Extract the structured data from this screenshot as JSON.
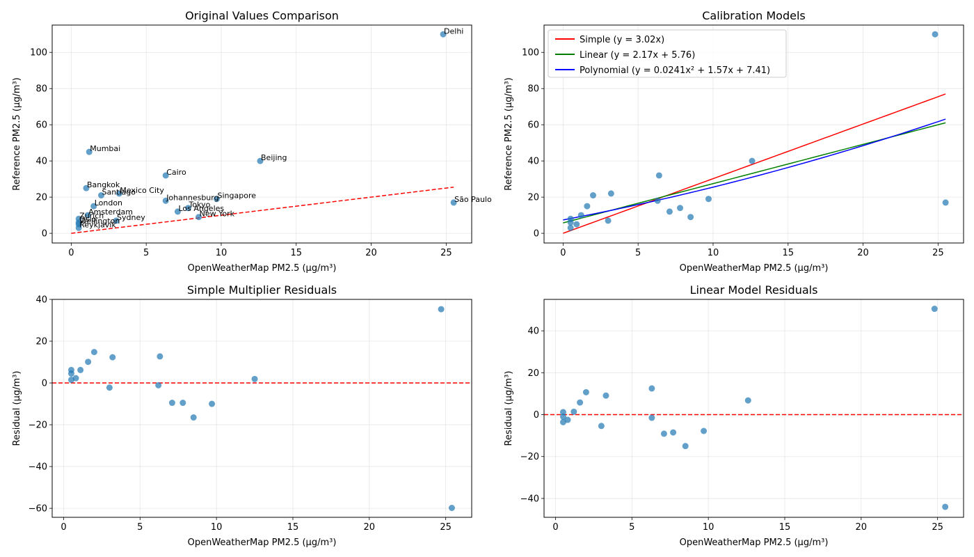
{
  "chart_data": [
    {
      "type": "scatter",
      "title": "Original Values Comparison",
      "xlabel": "OpenWeatherMap PM2.5 (µg/m³)",
      "ylabel": "Reference PM2.5 (µg/m³)",
      "xlim": [
        -1.27,
        26.7
      ],
      "ylim": [
        -5.35,
        115.1
      ],
      "xticks": [
        "0",
        "5",
        "10",
        "15",
        "20",
        "25"
      ],
      "yticks": [
        "0",
        "20",
        "40",
        "60",
        "80",
        "100"
      ],
      "grid": true,
      "points": [
        {
          "label": "Delhi",
          "x": 24.8,
          "y": 110
        },
        {
          "label": "Mumbai",
          "x": 1.2,
          "y": 45
        },
        {
          "label": "Beijing",
          "x": 12.6,
          "y": 40
        },
        {
          "label": "Cairo",
          "x": 6.3,
          "y": 32
        },
        {
          "label": "Bangkok",
          "x": 1.0,
          "y": 25
        },
        {
          "label": "Mexico City",
          "x": 3.2,
          "y": 22
        },
        {
          "label": "Santiago",
          "x": 2.0,
          "y": 21
        },
        {
          "label": "Singapore",
          "x": 9.7,
          "y": 19
        },
        {
          "label": "Johannesburg",
          "x": 6.3,
          "y": 18
        },
        {
          "label": "São Paulo",
          "x": 25.5,
          "y": 17
        },
        {
          "label": "London",
          "x": 1.5,
          "y": 15
        },
        {
          "label": "Tokyo",
          "x": 7.8,
          "y": 14
        },
        {
          "label": "Los Angeles",
          "x": 7.1,
          "y": 12
        },
        {
          "label": "Amsterdam",
          "x": 1.1,
          "y": 10
        },
        {
          "label": "New York",
          "x": 8.5,
          "y": 9
        },
        {
          "label": "Zurich",
          "x": 0.5,
          "y": 8
        },
        {
          "label": "Sydney",
          "x": 3.0,
          "y": 7
        },
        {
          "label": "Oslo",
          "x": 0.5,
          "y": 6
        },
        {
          "label": "Wellington",
          "x": 0.5,
          "y": 5
        },
        {
          "label": "Reykjavik",
          "x": 0.5,
          "y": 3
        }
      ],
      "reference_line": {
        "x": [
          0,
          25.5
        ],
        "y": [
          0,
          25.5
        ],
        "style": "dashed",
        "color": "#ff0000"
      }
    },
    {
      "type": "scatter",
      "title": "Calibration Models",
      "xlabel": "OpenWeatherMap PM2.5 (µg/m³)",
      "ylabel": "Reference PM2.5 (µg/m³)",
      "xlim": [
        -1.27,
        26.7
      ],
      "ylim": [
        -5.35,
        115.1
      ],
      "xticks": [
        "0",
        "5",
        "10",
        "15",
        "20",
        "25"
      ],
      "yticks": [
        "0",
        "20",
        "40",
        "60",
        "80",
        "100"
      ],
      "grid": true,
      "legend_position": "top-left",
      "points": [
        {
          "x": 24.8,
          "y": 110
        },
        {
          "x": 1.2,
          "y": 10
        },
        {
          "x": 12.6,
          "y": 40
        },
        {
          "x": 6.4,
          "y": 32
        },
        {
          "x": 1.6,
          "y": 15
        },
        {
          "x": 3.2,
          "y": 22
        },
        {
          "x": 2.0,
          "y": 21
        },
        {
          "x": 9.7,
          "y": 19
        },
        {
          "x": 6.3,
          "y": 18
        },
        {
          "x": 25.5,
          "y": 17
        },
        {
          "x": 7.8,
          "y": 14
        },
        {
          "x": 7.1,
          "y": 12
        },
        {
          "x": 0.9,
          "y": 5
        },
        {
          "x": 8.5,
          "y": 9
        },
        {
          "x": 0.5,
          "y": 8
        },
        {
          "x": 3.0,
          "y": 7
        },
        {
          "x": 0.5,
          "y": 6
        },
        {
          "x": 0.5,
          "y": 3
        }
      ],
      "series": [
        {
          "name": "Simple (y = 3.02x)",
          "color": "#ff0000",
          "model": "simple",
          "coef": [
            3.02
          ]
        },
        {
          "name": "Linear (y = 2.17x + 5.76)",
          "color": "#008000",
          "model": "linear",
          "coef": [
            2.17,
            5.76
          ]
        },
        {
          "name": "Polynomial (y = 0.0241x² + 1.57x + 7.41)",
          "color": "#0000ff",
          "model": "poly",
          "coef": [
            0.0241,
            1.57,
            7.41
          ]
        }
      ],
      "x_range": [
        0,
        25.5
      ]
    },
    {
      "type": "scatter",
      "title": "Simple Multiplier Residuals",
      "xlabel": "OpenWeatherMap PM2.5 (µg/m³)",
      "ylabel": "Residual (µg/m³)",
      "xlim": [
        -0.75,
        26.7
      ],
      "ylim": [
        -64.3,
        40.0
      ],
      "xticks": [
        "0",
        "5",
        "10",
        "15",
        "20",
        "25"
      ],
      "yticks": [
        "−60",
        "−40",
        "−20",
        "0",
        "20",
        "40"
      ],
      "grid": true,
      "points": [
        {
          "x": 24.7,
          "y": 35.3
        },
        {
          "x": 0.5,
          "y": 6.2
        },
        {
          "x": 0.5,
          "y": 4.5
        },
        {
          "x": 0.5,
          "y": 1.5
        },
        {
          "x": 0.8,
          "y": 2.3
        },
        {
          "x": 1.1,
          "y": 6.2
        },
        {
          "x": 1.6,
          "y": 10.1
        },
        {
          "x": 2.0,
          "y": 14.8
        },
        {
          "x": 3.2,
          "y": 12.3
        },
        {
          "x": 3.0,
          "y": -2.2
        },
        {
          "x": 6.3,
          "y": 12.7
        },
        {
          "x": 6.2,
          "y": -1.1
        },
        {
          "x": 7.1,
          "y": -9.5
        },
        {
          "x": 7.8,
          "y": -9.5
        },
        {
          "x": 8.5,
          "y": -16.5
        },
        {
          "x": 9.7,
          "y": -10.0
        },
        {
          "x": 12.5,
          "y": 1.9
        },
        {
          "x": 25.4,
          "y": -59.8
        }
      ],
      "reference_line": {
        "y": 0,
        "style": "dashed",
        "color": "#ff0000"
      }
    },
    {
      "type": "scatter",
      "title": "Linear Model Residuals",
      "xlabel": "OpenWeatherMap PM2.5 (µg/m³)",
      "ylabel": "Residual (µg/m³)",
      "xlim": [
        -0.75,
        26.7
      ],
      "ylim": [
        -49.0,
        55.0
      ],
      "xticks": [
        "0",
        "5",
        "10",
        "15",
        "20",
        "25"
      ],
      "yticks": [
        "−40",
        "−20",
        "0",
        "20",
        "40"
      ],
      "grid": true,
      "points": [
        {
          "x": 24.8,
          "y": 50.5
        },
        {
          "x": 0.5,
          "y": 1.2
        },
        {
          "x": 0.5,
          "y": -1.0
        },
        {
          "x": 0.5,
          "y": -3.6
        },
        {
          "x": 0.8,
          "y": -2.5
        },
        {
          "x": 1.2,
          "y": 1.4
        },
        {
          "x": 1.6,
          "y": 5.8
        },
        {
          "x": 2.0,
          "y": 10.7
        },
        {
          "x": 3.3,
          "y": 9.1
        },
        {
          "x": 3.0,
          "y": -5.4
        },
        {
          "x": 6.3,
          "y": 12.5
        },
        {
          "x": 6.3,
          "y": -1.5
        },
        {
          "x": 7.1,
          "y": -9.1
        },
        {
          "x": 7.7,
          "y": -8.5
        },
        {
          "x": 8.5,
          "y": -15.0
        },
        {
          "x": 9.7,
          "y": -7.8
        },
        {
          "x": 12.6,
          "y": 6.8
        },
        {
          "x": 25.5,
          "y": -44.0
        }
      ],
      "reference_line": {
        "y": 0,
        "style": "dashed",
        "color": "#ff0000"
      }
    }
  ]
}
